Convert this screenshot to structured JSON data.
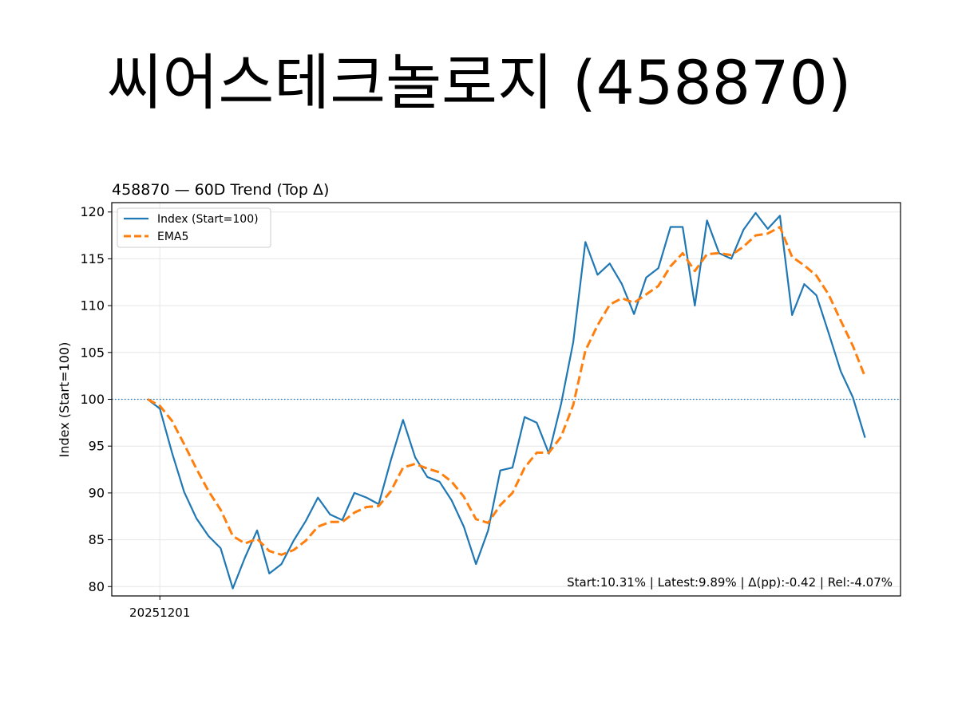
{
  "page_title": "씨어스테크놀로지 (458870)",
  "chart_data": {
    "type": "line",
    "title": "458870 — 60D Trend (Top Δ)",
    "xlabel": "",
    "ylabel": "Index (Start=100)",
    "ylim": [
      79,
      121
    ],
    "yticks": [
      80,
      85,
      90,
      95,
      100,
      105,
      110,
      115,
      120
    ],
    "xtick_labels": [
      {
        "index": 1,
        "label": "20251201"
      }
    ],
    "reference_line": 100,
    "grid": true,
    "legend_position": "top-left",
    "annotation": "Start:10.31% | Latest:9.89% | Δ(pp):-0.42 | Rel:-4.07%",
    "series": [
      {
        "name": "Index (Start=100)",
        "color": "#1f77b4",
        "style": "solid",
        "values": [
          100.0,
          99.0,
          94.3,
          90.1,
          87.3,
          85.4,
          84.1,
          79.8,
          83.1,
          86.0,
          81.4,
          82.4,
          84.9,
          87.0,
          89.5,
          87.7,
          87.1,
          90.0,
          89.5,
          88.8,
          93.5,
          97.8,
          93.8,
          91.7,
          91.2,
          89.2,
          86.4,
          82.4,
          86.0,
          92.4,
          92.7,
          98.1,
          97.5,
          94.2,
          99.5,
          106.1,
          116.8,
          113.3,
          114.5,
          112.3,
          109.1,
          113.0,
          114.0,
          118.4,
          118.4,
          110.0,
          119.1,
          115.6,
          115.0,
          118.1,
          119.9,
          118.2,
          119.6,
          109.0,
          112.3,
          111.1,
          107.1,
          103.0,
          100.2,
          95.9
        ]
      },
      {
        "name": "EMA5",
        "color": "#ff7f0e",
        "style": "dashed",
        "values": [
          100.0,
          99.3,
          97.7,
          95.2,
          92.6,
          90.2,
          88.2,
          85.4,
          84.6,
          85.1,
          83.8,
          83.4,
          83.9,
          84.9,
          86.4,
          86.9,
          86.9,
          87.9,
          88.5,
          88.6,
          90.2,
          92.7,
          93.1,
          92.6,
          92.2,
          91.2,
          89.6,
          87.2,
          86.8,
          88.7,
          90.0,
          92.7,
          94.3,
          94.3,
          96.0,
          99.4,
          105.2,
          107.9,
          110.1,
          110.8,
          110.3,
          111.2,
          112.1,
          114.2,
          115.6,
          113.7,
          115.5,
          115.6,
          115.4,
          116.3,
          117.5,
          117.7,
          118.4,
          115.2,
          114.3,
          113.2,
          111.2,
          108.4,
          105.7,
          102.4
        ]
      }
    ]
  }
}
